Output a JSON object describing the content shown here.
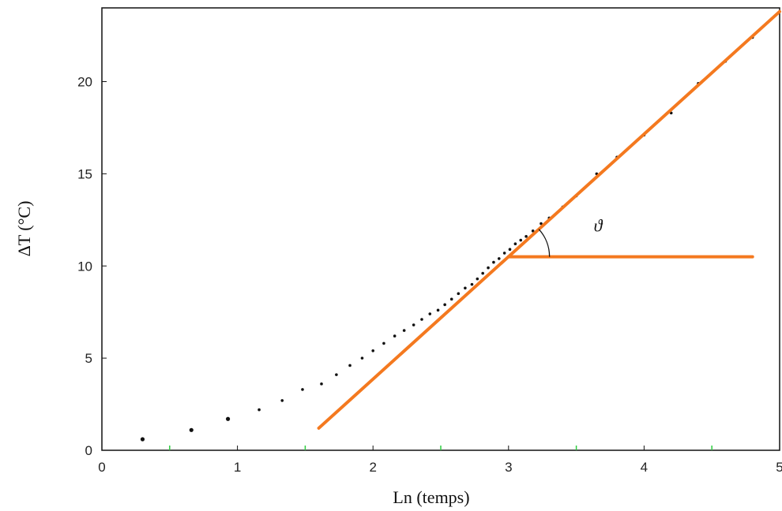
{
  "chart_data": {
    "type": "scatter",
    "xlabel": "Ln (temps)",
    "ylabel": "ΔT (°C)",
    "xlim": [
      0,
      5
    ],
    "ylim": [
      0,
      24
    ],
    "x_ticks": [
      "0",
      "1",
      "2",
      "3",
      "4",
      "5"
    ],
    "y_ticks": [
      "0",
      "5",
      "10",
      "15",
      "20"
    ],
    "grid": false,
    "series": [
      {
        "marker": "dot",
        "color": "#111111",
        "points": [
          [
            0.3,
            0.6
          ],
          [
            0.66,
            1.1
          ],
          [
            0.93,
            1.7
          ],
          [
            1.16,
            2.2
          ],
          [
            1.33,
            2.7
          ],
          [
            1.48,
            3.3
          ],
          [
            1.62,
            3.6
          ],
          [
            1.73,
            4.1
          ],
          [
            1.83,
            4.6
          ],
          [
            1.92,
            5.0
          ],
          [
            2.0,
            5.4
          ],
          [
            2.08,
            5.8
          ],
          [
            2.16,
            6.2
          ],
          [
            2.23,
            6.5
          ],
          [
            2.3,
            6.8
          ],
          [
            2.36,
            7.1
          ],
          [
            2.42,
            7.4
          ],
          [
            2.48,
            7.6
          ],
          [
            2.53,
            7.9
          ],
          [
            2.58,
            8.2
          ],
          [
            2.63,
            8.5
          ],
          [
            2.68,
            8.8
          ],
          [
            2.73,
            9.0
          ],
          [
            2.77,
            9.3
          ],
          [
            2.81,
            9.6
          ],
          [
            2.85,
            9.9
          ],
          [
            2.89,
            10.2
          ],
          [
            2.93,
            10.4
          ],
          [
            2.97,
            10.7
          ],
          [
            3.01,
            10.9
          ],
          [
            3.05,
            11.2
          ],
          [
            3.09,
            11.4
          ],
          [
            3.13,
            11.6
          ],
          [
            3.18,
            11.9
          ],
          [
            3.24,
            12.3
          ],
          [
            3.3,
            12.6
          ],
          [
            3.4,
            13.2
          ],
          [
            3.5,
            13.8
          ],
          [
            3.65,
            15.0
          ],
          [
            3.8,
            15.9
          ],
          [
            4.0,
            17.1
          ],
          [
            4.2,
            18.3
          ],
          [
            4.4,
            19.9
          ],
          [
            4.6,
            21.1
          ],
          [
            4.8,
            22.4
          ]
        ]
      }
    ],
    "annotations": {
      "fit_line": {
        "x": [
          1.6,
          5.0
        ],
        "y": [
          1.2,
          23.8
        ],
        "color": "#F4791F"
      },
      "horizontal_line": {
        "x": [
          3.0,
          4.8
        ],
        "y": [
          10.5,
          10.5
        ],
        "color": "#F4791F"
      },
      "angle_label": "ϑ"
    }
  }
}
